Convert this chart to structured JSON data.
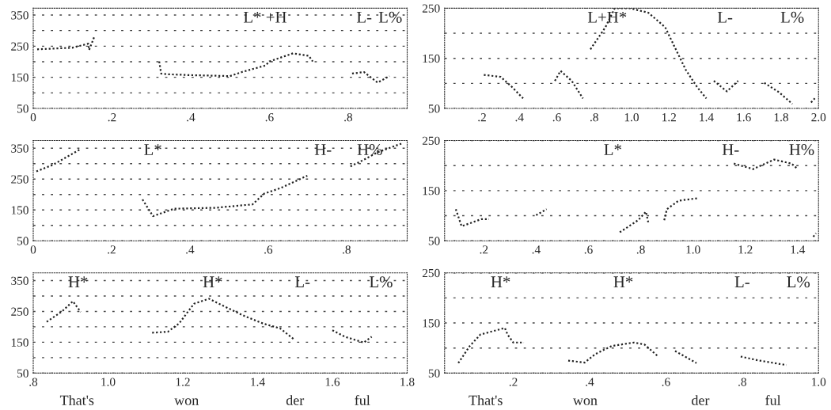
{
  "chart_data": [
    {
      "type": "line",
      "color": "#222222",
      "line_style": "dotted",
      "grid": "y",
      "xlim": [
        0,
        0.95
      ],
      "ylim": [
        50,
        372
      ],
      "xticks": [
        0,
        {
          "value": 0.2,
          "label": ".2"
        },
        {
          "value": 0.4,
          "label": ".4"
        },
        {
          "value": 0.6,
          "label": ".6"
        },
        {
          "value": 0.8,
          "label": ".8"
        }
      ],
      "yticks": [
        50,
        {
          "value": 100,
          "label": null
        },
        150,
        {
          "value": 200,
          "label": null
        },
        250,
        {
          "value": 300,
          "label": null
        },
        350
      ],
      "x": [
        0.01,
        0.099,
        0.14,
        0.142,
        0.155,
        0.24,
        0.32,
        0.325,
        0.34,
        0.4,
        0.5,
        0.53,
        0.59,
        0.6,
        0.66,
        0.7,
        0.71,
        0.76,
        0.81,
        0.84,
        0.875,
        0.905
      ],
      "values": [
        240,
        245,
        258,
        238,
        280,
        null,
        201,
        162,
        160,
        157,
        154,
        167,
        188,
        201,
        227,
        219,
        201,
        null,
        162,
        167,
        133,
        154
      ],
      "annotations": [
        "L* +H",
        "L-",
        "L%"
      ]
    },
    {
      "type": "line",
      "color": "#222222",
      "line_style": "dotted",
      "grid": "y",
      "xlim": [
        0,
        2.0
      ],
      "ylim": [
        50,
        250
      ],
      "xticks": [
        {
          "value": 0.2,
          "label": ".2"
        },
        {
          "value": 0.4,
          "label": ".4"
        },
        {
          "value": 0.6,
          "label": ".6"
        },
        {
          "value": 0.8,
          "label": ".8"
        },
        {
          "value": 1.0,
          "label": "1.0"
        },
        {
          "value": 1.2,
          "label": "1.2"
        },
        {
          "value": 1.4,
          "label": "1.4"
        },
        {
          "value": 1.6,
          "label": "1.6"
        },
        {
          "value": 1.8,
          "label": "1.8"
        },
        {
          "value": 2.0,
          "label": "2.0"
        }
      ],
      "yticks": [
        50,
        {
          "value": 100,
          "label": null
        },
        150,
        {
          "value": 200,
          "label": null
        },
        250
      ],
      "x": [
        0.21,
        0.3,
        0.36,
        0.42,
        0.5,
        0.59,
        0.62,
        0.68,
        0.74,
        0.76,
        0.78,
        0.86,
        0.91,
        0.99,
        1.09,
        1.18,
        1.23,
        1.29,
        1.35,
        1.4,
        1.42,
        1.44,
        1.51,
        1.57,
        1.64,
        1.71,
        1.79,
        1.86,
        1.92,
        1.96,
        1.98
      ],
      "values": [
        117,
        113,
        93,
        70,
        null,
        105,
        125,
        105,
        70,
        null,
        168,
        212,
        250,
        250,
        241,
        212,
        173,
        127,
        93,
        70,
        null,
        105,
        84,
        105,
        null,
        101,
        82,
        59,
        null,
        62,
        70
      ],
      "annotations": [
        "L+H*",
        "L-",
        "L%"
      ]
    },
    {
      "type": "line",
      "color": "#222222",
      "line_style": "dotted",
      "grid": "y",
      "xlim": [
        0,
        0.955
      ],
      "ylim": [
        50,
        375
      ],
      "xticks": [
        0,
        {
          "value": 0.2,
          "label": ".2"
        },
        {
          "value": 0.4,
          "label": ".4"
        },
        {
          "value": 0.6,
          "label": ".6"
        },
        {
          "value": 0.8,
          "label": ".8"
        }
      ],
      "yticks": [
        50,
        {
          "value": 100,
          "label": null
        },
        150,
        {
          "value": 200,
          "label": null
        },
        250,
        {
          "value": 300,
          "label": null
        },
        350
      ],
      "x": [
        0.008,
        0.05,
        0.118,
        0.2,
        0.279,
        0.3,
        0.306,
        0.36,
        0.466,
        0.56,
        0.59,
        0.632,
        0.7,
        0.76,
        0.81,
        0.84,
        0.88,
        0.94
      ],
      "values": [
        275,
        296,
        345,
        null,
        184,
        141,
        130,
        154,
        157,
        168,
        203,
        221,
        261,
        null,
        291,
        310,
        337,
        365
      ],
      "annotations": [
        "L*",
        "H-",
        "H%"
      ]
    },
    {
      "type": "line",
      "color": "#222222",
      "line_style": "dotted",
      "grid": "y",
      "xlim": [
        0.05,
        1.48
      ],
      "ylim": [
        50,
        250
      ],
      "xticks": [
        {
          "value": 0.2,
          "label": ".2"
        },
        {
          "value": 0.4,
          "label": ".4"
        },
        {
          "value": 0.6,
          "label": ".6"
        },
        {
          "value": 0.8,
          "label": ".8"
        },
        {
          "value": 1.0,
          "label": "1.0"
        },
        {
          "value": 1.2,
          "label": "1.2"
        },
        {
          "value": 1.4,
          "label": "1.4"
        }
      ],
      "yticks": [
        {
          "value": 50,
          "label": "50"
        },
        {
          "value": 100,
          "label": null
        },
        150,
        {
          "value": 200,
          "label": null
        },
        250
      ],
      "x": [
        0.093,
        0.115,
        0.19,
        0.22,
        0.3,
        0.4,
        0.44,
        0.6,
        0.72,
        0.79,
        0.82,
        0.83,
        0.86,
        0.89,
        0.9,
        0.945,
        1.02,
        1.1,
        1.156,
        1.23,
        1.31,
        1.377,
        1.4,
        1.44,
        1.46,
        1.47
      ],
      "values": [
        113,
        79,
        93,
        93,
        null,
        101,
        113,
        null,
        67,
        91,
        108,
        84,
        null,
        91,
        113,
        130,
        135,
        null,
        204,
        193,
        212,
        204,
        193,
        null,
        58,
        65
      ],
      "annotations": [
        "L*",
        "H-",
        "H%"
      ]
    },
    {
      "type": "line",
      "color": "#222222",
      "line_style": "dotted",
      "grid": "y",
      "xlim": [
        0.8,
        1.8
      ],
      "ylim": [
        50,
        375
      ],
      "xticks": [
        {
          "value": 0.8,
          "label": ".8"
        },
        {
          "value": 1.0,
          "label": "1.0"
        },
        {
          "value": 1.2,
          "label": "1.2"
        },
        {
          "value": 1.4,
          "label": "1.4"
        },
        {
          "value": 1.6,
          "label": "1.6"
        },
        {
          "value": 1.8,
          "label": "1.8"
        }
      ],
      "yticks": [
        50,
        {
          "value": 100,
          "label": null
        },
        150,
        {
          "value": 200,
          "label": null
        },
        250,
        {
          "value": 300,
          "label": null
        },
        350
      ],
      "x": [
        0.836,
        0.878,
        0.906,
        0.927,
        1.0,
        1.118,
        1.16,
        1.19,
        1.23,
        1.27,
        1.315,
        1.365,
        1.414,
        1.46,
        1.5,
        1.55,
        1.6,
        1.633,
        1.684,
        1.705
      ],
      "values": [
        216,
        251,
        283,
        248,
        null,
        181,
        184,
        211,
        275,
        291,
        264,
        235,
        211,
        195,
        157,
        null,
        189,
        168,
        149,
        168
      ],
      "annotations": [
        "H*",
        "H*",
        "L-",
        "L%",
        "That's",
        "won",
        "der",
        "ful"
      ]
    },
    {
      "type": "line",
      "color": "#222222",
      "line_style": "dotted",
      "grid": "y",
      "xlim": [
        0.02,
        1.0
      ],
      "ylim": [
        50,
        250
      ],
      "xticks": [
        {
          "value": 0.2,
          "label": ".2"
        },
        {
          "value": 0.4,
          "label": ".4"
        },
        {
          "value": 0.6,
          "label": ".6"
        },
        {
          "value": 0.8,
          "label": ".8"
        },
        {
          "value": 1.0,
          "label": "1.0"
        }
      ],
      "yticks": [
        50,
        {
          "value": 100,
          "label": null
        },
        150,
        {
          "value": 200,
          "label": null
        },
        250
      ],
      "x": [
        0.056,
        0.086,
        0.114,
        0.178,
        0.185,
        0.2,
        0.228,
        0.3,
        0.344,
        0.387,
        0.415,
        0.458,
        0.516,
        0.544,
        0.58,
        0.6,
        0.624,
        0.65,
        0.68,
        0.75,
        0.796,
        0.845,
        0.916
      ],
      "values": [
        70,
        104,
        127,
        140,
        127,
        111,
        111,
        null,
        75,
        71,
        88,
        104,
        111,
        107,
        83,
        null,
        94,
        83,
        70,
        null,
        83,
        75,
        66
      ],
      "annotations": [
        "H*",
        "H*",
        "L-",
        "L%",
        "That's",
        "won",
        "der",
        "ful"
      ]
    }
  ]
}
